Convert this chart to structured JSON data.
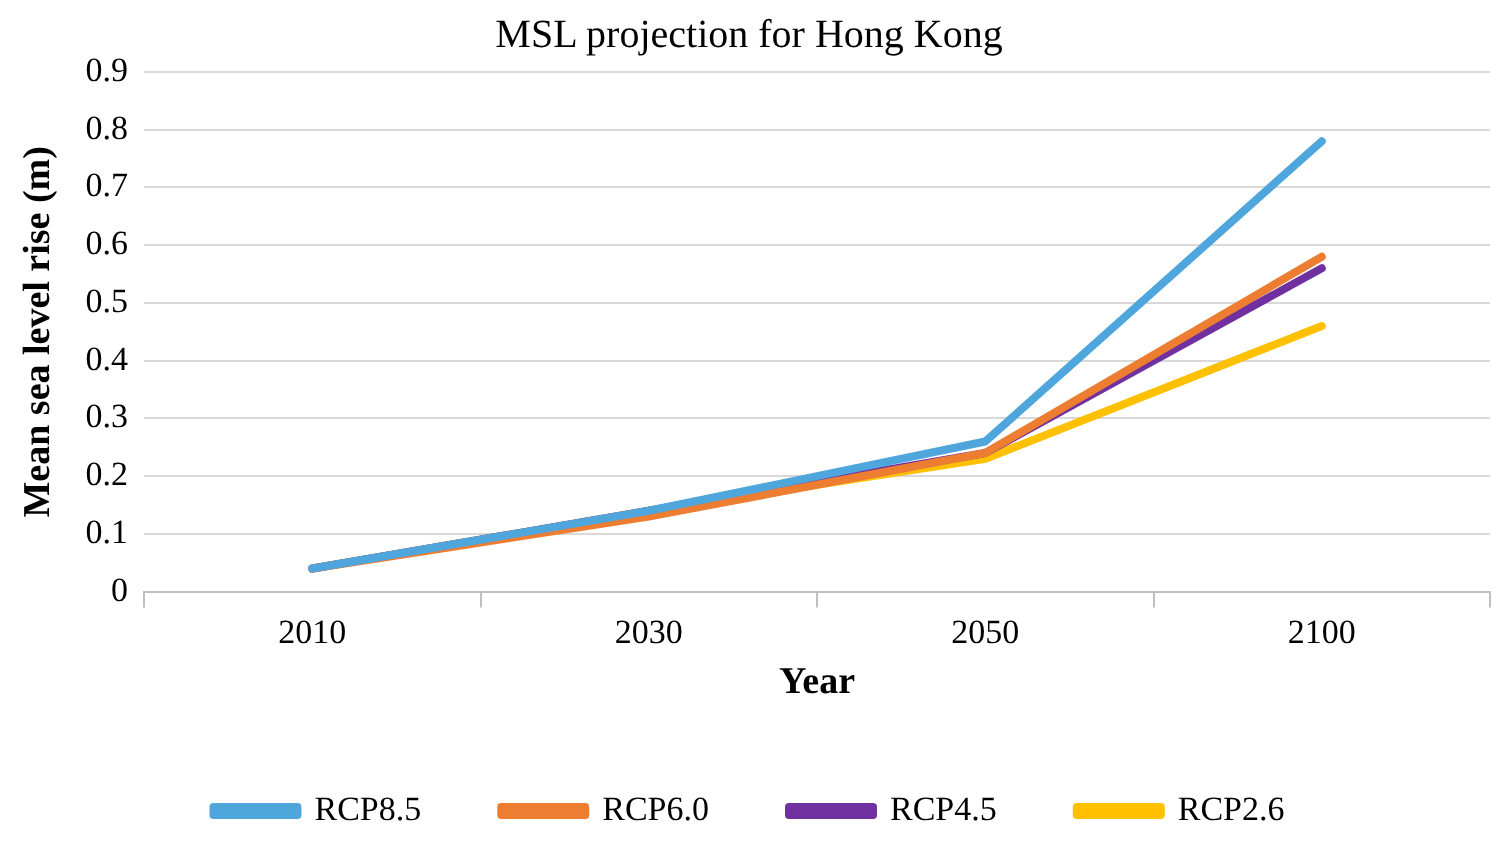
{
  "chart_data": {
    "type": "line",
    "title": "MSL projection for Hong Kong",
    "xlabel": "Year",
    "ylabel": "Mean sea level rise (m)",
    "categories": [
      "2010",
      "2030",
      "2050",
      "2100"
    ],
    "series": [
      {
        "name": "RCP8.5",
        "color": "#4ea6dc",
        "values": [
          0.04,
          0.14,
          0.26,
          0.78
        ]
      },
      {
        "name": "RCP6.0",
        "color": "#ed7d31",
        "values": [
          0.04,
          0.13,
          0.24,
          0.58
        ]
      },
      {
        "name": "RCP4.5",
        "color": "#7030a0",
        "values": [
          0.04,
          0.14,
          0.24,
          0.56
        ]
      },
      {
        "name": "RCP2.6",
        "color": "#ffc000",
        "values": [
          0.04,
          0.14,
          0.23,
          0.46
        ]
      }
    ],
    "ylim": [
      0,
      0.9
    ],
    "yticks": [
      0,
      0.1,
      0.2,
      0.3,
      0.4,
      0.5,
      0.6,
      0.7,
      0.8,
      0.9
    ],
    "grid": "y",
    "legend": "bottom",
    "marker": "none",
    "line_style": "solid"
  }
}
